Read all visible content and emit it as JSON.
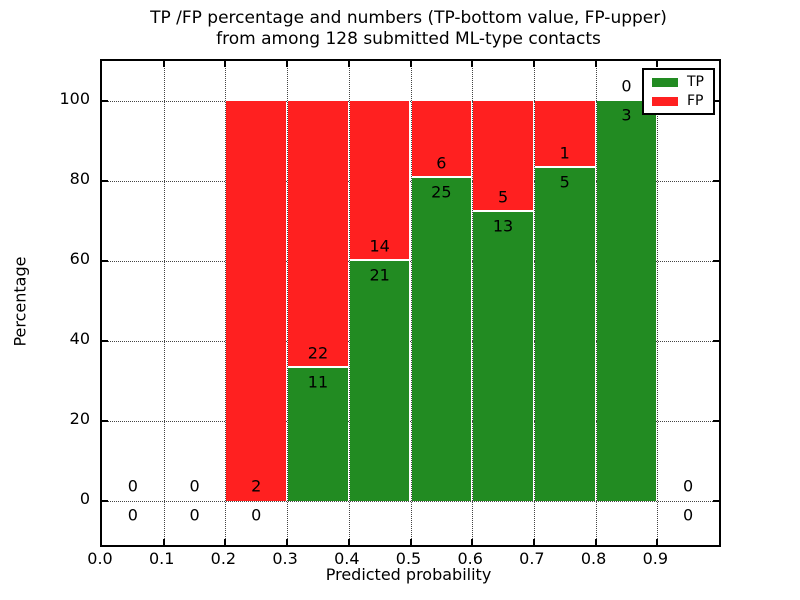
{
  "title": {
    "line1": "TP /FP percentage and numbers (TP-bottom value, FP-upper)",
    "line2": "from among 128 submitted ML-type contacts"
  },
  "axes": {
    "xlabel": "Predicted probability",
    "ylabel": "Percentage",
    "xtick_labels": [
      "0.0",
      "0.1",
      "0.2",
      "0.3",
      "0.4",
      "0.5",
      "0.6",
      "0.7",
      "0.8",
      "0.9"
    ],
    "ytick_labels": [
      "0",
      "20",
      "40",
      "60",
      "80",
      "100"
    ],
    "ytick_values": [
      0,
      20,
      40,
      60,
      80,
      100
    ],
    "xlim": [
      0.0,
      1.0
    ],
    "ylim": [
      -11,
      110
    ]
  },
  "legend": {
    "items": [
      {
        "label": "TP",
        "color": "#228b22"
      },
      {
        "label": "FP",
        "color": "#ff2020"
      }
    ]
  },
  "chart_data": {
    "type": "bar",
    "stacked": true,
    "normalized": "percent",
    "title": "TP /FP percentage and numbers (TP-bottom value, FP-upper) from among 128 submitted ML-type contacts",
    "xlabel": "Predicted probability",
    "ylabel": "Percentage",
    "total_contacts": 128,
    "grid": "dotted",
    "legend_position": "upper right",
    "colors": {
      "tp": "#228b22",
      "fp": "#ff2020"
    },
    "annotation_note": "upper number = FP count, lower number = TP count, placed at top of TP segment",
    "bins": [
      {
        "x0": 0.0,
        "x1": 0.1,
        "tp": 0,
        "fp": 0,
        "tp_pct": null,
        "fp_pct": null
      },
      {
        "x0": 0.1,
        "x1": 0.2,
        "tp": 0,
        "fp": 0,
        "tp_pct": null,
        "fp_pct": null
      },
      {
        "x0": 0.2,
        "x1": 0.3,
        "tp": 0,
        "fp": 2,
        "tp_pct": 0.0,
        "fp_pct": 100.0
      },
      {
        "x0": 0.3,
        "x1": 0.4,
        "tp": 11,
        "fp": 22,
        "tp_pct": 33.3,
        "fp_pct": 66.7
      },
      {
        "x0": 0.4,
        "x1": 0.5,
        "tp": 21,
        "fp": 14,
        "tp_pct": 60.0,
        "fp_pct": 40.0
      },
      {
        "x0": 0.5,
        "x1": 0.6,
        "tp": 25,
        "fp": 6,
        "tp_pct": 80.6,
        "fp_pct": 19.4
      },
      {
        "x0": 0.6,
        "x1": 0.7,
        "tp": 13,
        "fp": 5,
        "tp_pct": 72.2,
        "fp_pct": 27.8
      },
      {
        "x0": 0.7,
        "x1": 0.8,
        "tp": 5,
        "fp": 1,
        "tp_pct": 83.3,
        "fp_pct": 16.7
      },
      {
        "x0": 0.8,
        "x1": 0.9,
        "tp": 3,
        "fp": 0,
        "tp_pct": 100.0,
        "fp_pct": 0.0
      },
      {
        "x0": 0.9,
        "x1": 1.0,
        "tp": 0,
        "fp": 0,
        "tp_pct": null,
        "fp_pct": null
      }
    ]
  }
}
